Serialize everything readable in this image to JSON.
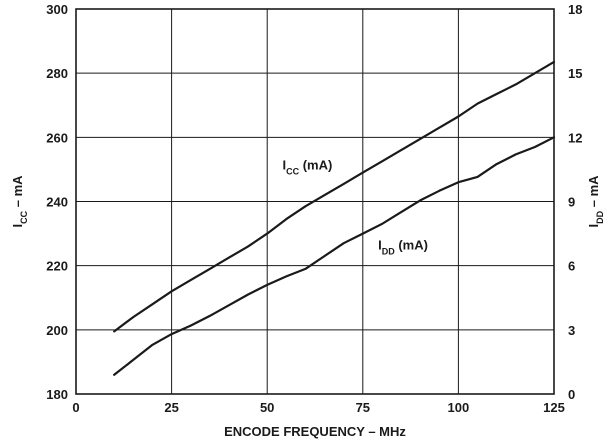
{
  "chart_data": {
    "type": "line",
    "xlabel": "ENCODE FREQUENCY – MHz",
    "xlim": [
      0,
      125
    ],
    "x_ticks": [
      0,
      25,
      50,
      75,
      100,
      125
    ],
    "grid": true,
    "y_left": {
      "label_main": "I",
      "label_sub": "CC",
      "label_rest": " – mA",
      "lim": [
        180,
        300
      ],
      "ticks": [
        180,
        200,
        220,
        240,
        260,
        280,
        300
      ]
    },
    "y_right": {
      "label_main": "I",
      "label_sub": "DD",
      "label_rest": " – mA",
      "lim": [
        0,
        18
      ],
      "ticks": [
        0,
        3,
        6,
        9,
        12,
        15,
        18
      ]
    },
    "series": [
      {
        "name_main": "I",
        "name_sub": "CC",
        "name_rest": " (mA)",
        "axis": "left",
        "x": [
          10,
          15,
          20,
          25,
          30,
          35,
          40,
          45,
          50,
          55,
          60,
          65,
          70,
          75,
          80,
          85,
          90,
          95,
          100,
          105,
          110,
          115,
          120,
          125
        ],
        "y": [
          199.5,
          204,
          208,
          212,
          215.5,
          219,
          222.5,
          226,
          230,
          234.5,
          238.5,
          242,
          245.5,
          249,
          252.5,
          256,
          259.5,
          263,
          266.5,
          270.5,
          273.5,
          276.5,
          280,
          283.5
        ]
      },
      {
        "name_main": "I",
        "name_sub": "DD",
        "name_rest": " (mA)",
        "axis": "right",
        "x": [
          10,
          15,
          20,
          25,
          30,
          35,
          40,
          45,
          50,
          55,
          60,
          65,
          70,
          75,
          80,
          85,
          90,
          95,
          100,
          105,
          110,
          115,
          120,
          125
        ],
        "y": [
          0.9,
          1.6,
          2.3,
          2.8,
          3.2,
          3.65,
          4.15,
          4.65,
          5.1,
          5.5,
          5.85,
          6.45,
          7.05,
          7.5,
          7.95,
          8.5,
          9.05,
          9.5,
          9.9,
          10.15,
          10.75,
          11.2,
          11.55,
          12.0
        ]
      }
    ]
  }
}
